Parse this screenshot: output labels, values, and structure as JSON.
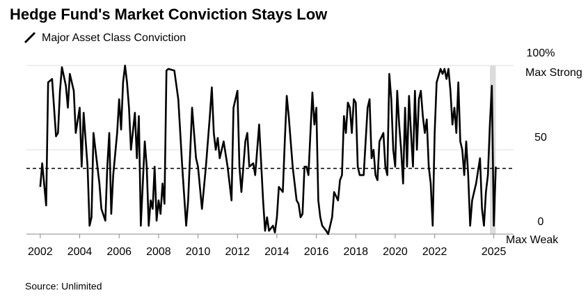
{
  "chart_data": {
    "type": "line",
    "title": "Hedge Fund's Market Conviction Stays Low",
    "legend_label": "Major Asset Class Conviction",
    "source": "Source: Unlimited",
    "annotations": [
      "Max Strong",
      "Max Weak"
    ],
    "color": "#000000",
    "x": [
      2002.0,
      2002.1,
      2002.3,
      2002.4,
      2002.6,
      2002.8,
      2002.9,
      2003.0,
      2003.1,
      2003.3,
      2003.4,
      2003.5,
      2003.7,
      2003.8,
      2004.0,
      2004.1,
      2004.2,
      2004.4,
      2004.5,
      2004.6,
      2004.7,
      2004.9,
      2005.0,
      2005.1,
      2005.3,
      2005.4,
      2005.5,
      2005.6,
      2005.7,
      2005.9,
      2006.0,
      2006.1,
      2006.2,
      2006.3,
      2006.4,
      2006.5,
      2006.6,
      2006.8,
      2006.9,
      2007.0,
      2007.1,
      2007.3,
      2007.4,
      2007.5,
      2007.6,
      2007.7,
      2007.8,
      2007.9,
      2008.0,
      2008.1,
      2008.2,
      2008.3,
      2008.4,
      2008.5,
      2008.8,
      2009.0,
      2009.2,
      2009.4,
      2009.5,
      2009.7,
      2009.9,
      2010.0,
      2010.2,
      2010.4,
      2010.6,
      2010.7,
      2010.8,
      2010.9,
      2011.0,
      2011.1,
      2011.3,
      2011.5,
      2011.7,
      2011.8,
      2011.9,
      2012.0,
      2012.1,
      2012.2,
      2012.4,
      2012.5,
      2012.6,
      2012.8,
      2012.9,
      2013.0,
      2013.1,
      2013.3,
      2013.4,
      2013.5,
      2013.6,
      2013.8,
      2013.9,
      2014.0,
      2014.1,
      2014.3,
      2014.4,
      2014.5,
      2014.6,
      2014.8,
      2015.0,
      2015.1,
      2015.2,
      2015.3,
      2015.4,
      2015.5,
      2015.6,
      2015.7,
      2015.8,
      2015.9,
      2016.0,
      2016.1,
      2016.2,
      2016.3,
      2016.5,
      2016.6,
      2016.8,
      2016.9,
      2017.1,
      2017.2,
      2017.3,
      2017.4,
      2017.5,
      2017.6,
      2017.7,
      2017.8,
      2017.9,
      2018.0,
      2018.1,
      2018.2,
      2018.4,
      2018.6,
      2018.7,
      2018.8,
      2018.9,
      2019.0,
      2019.1,
      2019.2,
      2019.4,
      2019.5,
      2019.6,
      2019.7,
      2019.8,
      2019.9,
      2020.0,
      2020.1,
      2020.2,
      2020.3,
      2020.4,
      2020.5,
      2020.6,
      2020.7,
      2020.8,
      2020.9,
      2021.0,
      2021.1,
      2021.2,
      2021.3,
      2021.4,
      2021.5,
      2021.6,
      2021.7,
      2021.8,
      2021.9,
      2022.0,
      2022.1,
      2022.3,
      2022.4,
      2022.5,
      2022.6,
      2022.7,
      2022.8,
      2022.9,
      2023.0,
      2023.1,
      2023.2,
      2023.3,
      2023.4,
      2023.5,
      2023.6,
      2023.7,
      2023.8,
      2023.9,
      2024.1,
      2024.3,
      2024.4,
      2024.5,
      2024.6,
      2024.7,
      2024.8,
      2024.9,
      2025.0,
      2025.1
    ],
    "values": [
      28,
      42,
      17,
      90,
      92,
      58,
      60,
      85,
      99,
      88,
      75,
      95,
      85,
      60,
      75,
      40,
      72,
      40,
      5,
      10,
      60,
      40,
      30,
      15,
      8,
      40,
      60,
      12,
      35,
      60,
      80,
      62,
      90,
      100,
      90,
      75,
      50,
      72,
      45,
      70,
      5,
      55,
      40,
      5,
      20,
      15,
      40,
      8,
      20,
      12,
      30,
      18,
      97,
      98,
      97,
      80,
      40,
      5,
      20,
      75,
      45,
      40,
      15,
      40,
      70,
      87,
      60,
      50,
      57,
      45,
      55,
      40,
      20,
      75,
      80,
      85,
      40,
      25,
      55,
      60,
      40,
      42,
      35,
      50,
      65,
      20,
      2,
      10,
      2,
      5,
      1,
      10,
      28,
      25,
      55,
      82,
      70,
      40,
      20,
      18,
      10,
      12,
      40,
      40,
      35,
      60,
      84,
      65,
      75,
      20,
      10,
      5,
      2,
      0,
      10,
      25,
      20,
      32,
      35,
      70,
      60,
      78,
      75,
      60,
      80,
      78,
      40,
      35,
      35,
      75,
      80,
      45,
      50,
      35,
      32,
      55,
      60,
      40,
      35,
      95,
      80,
      50,
      40,
      85,
      65,
      50,
      30,
      75,
      40,
      82,
      60,
      40,
      85,
      50,
      80,
      85,
      70,
      60,
      68,
      40,
      30,
      5,
      60,
      90,
      98,
      95,
      98,
      92,
      98,
      85,
      65,
      75,
      60,
      90,
      55,
      50,
      35,
      55,
      35,
      5,
      20,
      30,
      45,
      15,
      5,
      25,
      35,
      65,
      88,
      5,
      40
    ],
    "xlim": [
      2001.3,
      2026.0
    ],
    "ylim": [
      0,
      100
    ],
    "yticks": [
      0,
      50,
      {
        "value": 100,
        "label": "100%"
      }
    ],
    "xticks": [
      2002,
      2004,
      2006,
      2008,
      2010,
      2012,
      2014,
      2016,
      2018,
      2020,
      2022,
      2025
    ],
    "reference_line": 39,
    "highlight_x": [
      2024.8,
      2025.1
    ],
    "grid": true
  }
}
